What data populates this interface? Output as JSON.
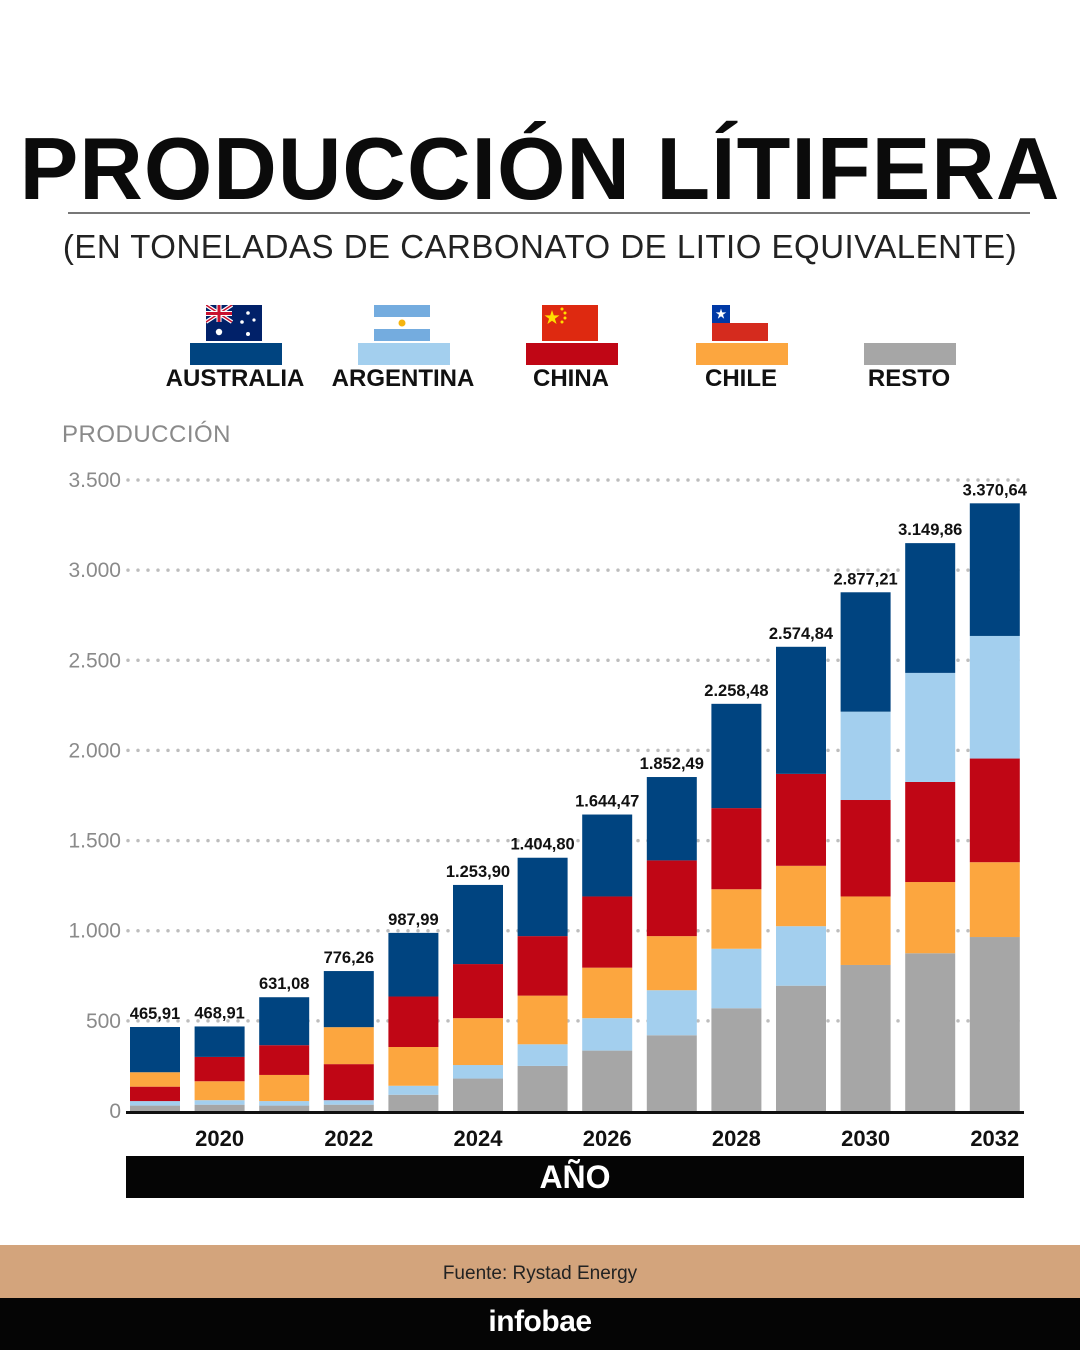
{
  "header": {
    "title": "PRODUCCIÓN LÍTIFERA",
    "subtitle": "(EN TONELADAS DE CARBONATO DE LITIO EQUIVALENTE)"
  },
  "legend": [
    {
      "label": "AUSTRALIA",
      "color": "#004480",
      "flag": "australia-flag-icon"
    },
    {
      "label": "ARGENTINA",
      "color": "#a3cfee",
      "flag": "argentina-flag-icon"
    },
    {
      "label": "CHINA",
      "color": "#c00615",
      "flag": "china-flag-icon"
    },
    {
      "label": "CHILE",
      "color": "#fca63f",
      "flag": "chile-flag-icon"
    },
    {
      "label": "RESTO",
      "color": "#a6a6a6",
      "flag": ""
    }
  ],
  "axis": {
    "y_title": "PRODUCCIÓN",
    "x_title": "AÑO"
  },
  "chart_data": {
    "type": "bar",
    "stacked": true,
    "ylabel": "PRODUCCIÓN",
    "xlabel": "AÑO",
    "ylim": [
      0,
      3500
    ],
    "yticks": [
      0,
      500,
      1000,
      1500,
      2000,
      2500,
      3000,
      3500
    ],
    "ytick_labels": [
      "0",
      "500",
      "1.000",
      "1.500",
      "2.000",
      "2.500",
      "3.000",
      "3.500"
    ],
    "grid": "horizontal dotted",
    "categories": [
      "2019",
      "2020",
      "2021",
      "2022",
      "2023",
      "2024",
      "2025",
      "2026",
      "2027",
      "2028",
      "2029",
      "2030",
      "2031",
      "2032"
    ],
    "x_tick_labels": [
      "",
      "2020",
      "",
      "2022",
      "",
      "2024",
      "",
      "2026",
      "",
      "2028",
      "",
      "2030",
      "",
      "2032"
    ],
    "totals": [
      465.91,
      468.91,
      631.08,
      776.26,
      987.99,
      1253.9,
      1404.8,
      1644.47,
      1852.49,
      2258.48,
      2574.84,
      2877.21,
      3149.86,
      3370.64
    ],
    "total_labels": [
      "465,91",
      "468,91",
      "631,08",
      "776,26",
      "987,99",
      "1.253,90",
      "1.404,80",
      "1.644,47",
      "1.852,49",
      "2.258,48",
      "2.574,84",
      "2.877,21",
      "3.149,86",
      "3.370,64"
    ],
    "series": [
      {
        "name": "RESTO",
        "color": "#a6a6a6",
        "values": [
          30,
          35,
          30,
          35,
          90,
          180,
          250,
          335,
          420,
          570,
          695,
          810,
          875,
          965
        ]
      },
      {
        "name": "ARGENTINA",
        "color": "#a3cfee",
        "values": [
          25,
          25,
          25,
          25,
          50,
          75,
          120,
          180,
          250,
          330,
          330,
          0,
          0,
          0
        ]
      },
      {
        "name": "CHINA",
        "color": "#c00615",
        "values": [
          80,
          0,
          0,
          200,
          0,
          0,
          0,
          0,
          0,
          0,
          0,
          0,
          0,
          0
        ]
      },
      {
        "name": "CHILE",
        "color": "#fca63f",
        "values": [
          80,
          105,
          145,
          205,
          215,
          260,
          270,
          280,
          300,
          330,
          335,
          380,
          395,
          415
        ]
      },
      {
        "name": "CHINA",
        "color": "#c00615",
        "values": [
          0,
          135,
          165,
          0,
          280,
          300,
          330,
          395,
          420,
          450,
          510,
          535,
          555,
          575
        ]
      },
      {
        "name": "ARGENTINA",
        "color": "#a3cfee",
        "values": [
          0,
          0,
          0,
          0,
          0,
          0,
          0,
          0,
          0,
          0,
          0,
          490,
          605,
          680
        ]
      },
      {
        "name": "AUSTRALIA",
        "color": "#004480",
        "values": [
          250.91,
          168.91,
          266.08,
          311.26,
          352.99,
          438.9,
          434.8,
          454.47,
          462.49,
          578.48,
          704.84,
          662.21,
          719.86,
          735.64
        ]
      }
    ]
  },
  "footer": {
    "source": "Fuente: Rystad Energy",
    "brand": "infobae"
  }
}
